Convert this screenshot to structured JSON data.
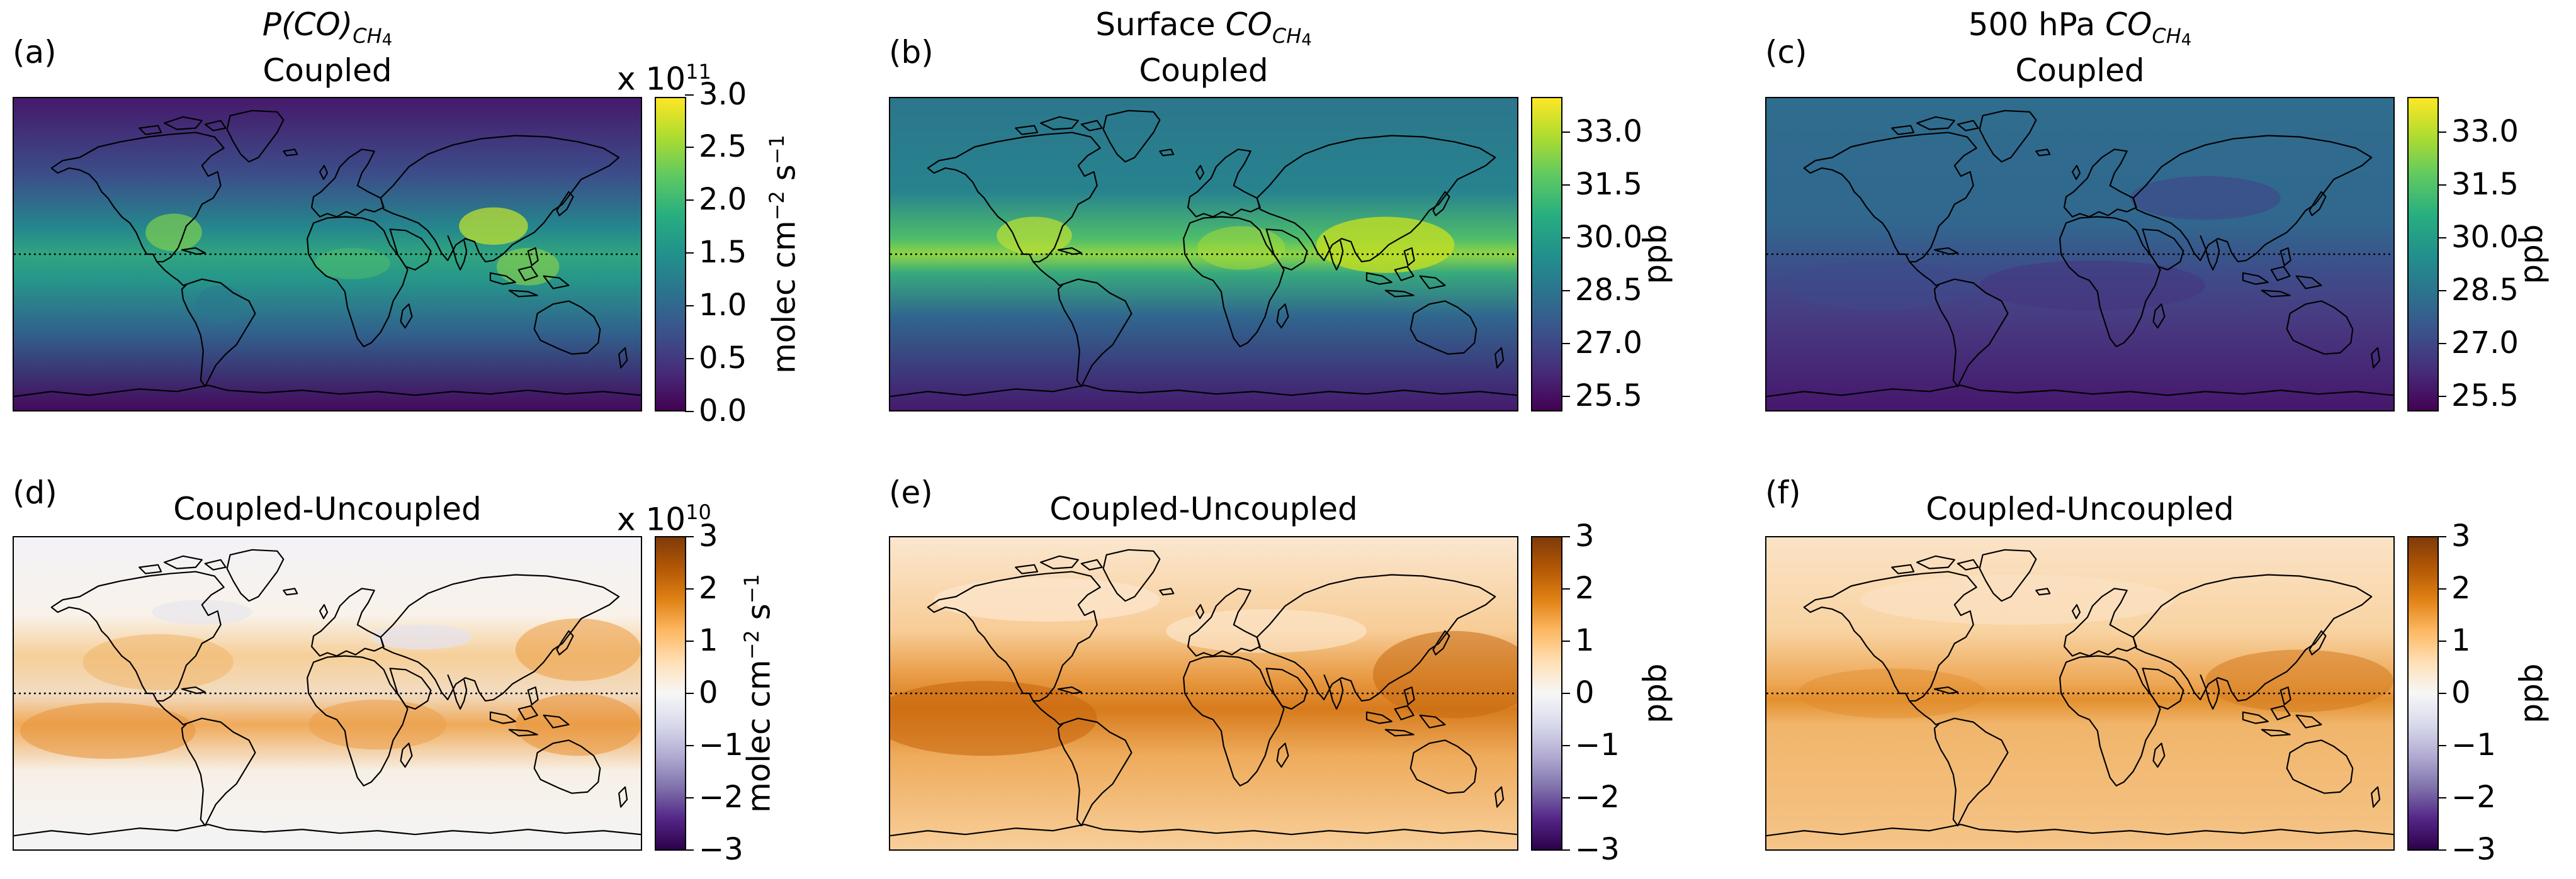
{
  "colors": {
    "viridis": [
      "#440154",
      "#472c7a",
      "#3b528b",
      "#2c728e",
      "#21918c",
      "#28ae80",
      "#5ec962",
      "#addc30",
      "#fde725"
    ],
    "puor": [
      "#2d004b",
      "#542788",
      "#8073ac",
      "#b2abd2",
      "#d8daeb",
      "#f7f7f7",
      "#fee0b6",
      "#fdb863",
      "#e08214",
      "#b35806",
      "#7f3b08"
    ],
    "coastline": "#000000",
    "equator": "#000000"
  },
  "panels": [
    {
      "letter": "(a)",
      "title_line1": {
        "main": "P(CO)",
        "sub": "CH",
        "sub2": "4"
      },
      "title_line2": "Coupled",
      "colorbar": {
        "cmap": "viridis",
        "multiplier_prefix": "x 10",
        "multiplier_exp": "11",
        "label": {
          "pre": "molec cm",
          "exp1": "−2",
          "mid": " s",
          "exp2": "−1"
        },
        "ticks": [
          "0.0",
          "0.5",
          "1.0",
          "1.5",
          "2.0",
          "2.5",
          "3.0"
        ]
      }
    },
    {
      "letter": "(b)",
      "title_line1": {
        "pre": "Surface ",
        "main": "CO",
        "sub": "CH",
        "sub2": "4"
      },
      "title_line2": "Coupled",
      "colorbar": {
        "cmap": "viridis",
        "label_text": "ppb",
        "ticks": [
          "25.5",
          "27.0",
          "28.5",
          "30.0",
          "31.5",
          "33.0"
        ]
      }
    },
    {
      "letter": "(c)",
      "title_line1": {
        "pre": "500 hPa ",
        "main": "CO",
        "sub": "CH",
        "sub2": "4"
      },
      "title_line2": "Coupled",
      "colorbar": {
        "cmap": "viridis",
        "label_text": "ppb",
        "ticks": [
          "25.5",
          "27.0",
          "28.5",
          "30.0",
          "31.5",
          "33.0"
        ]
      }
    },
    {
      "letter": "(d)",
      "title_line2": "Coupled-Uncoupled",
      "colorbar": {
        "cmap": "puor",
        "multiplier_prefix": "x 10",
        "multiplier_exp": "10",
        "label": {
          "pre": "molec cm",
          "exp1": "−2",
          "mid": " s",
          "exp2": "−1"
        },
        "ticks": [
          "−3",
          "−2",
          "−1",
          "0",
          "1",
          "2",
          "3"
        ]
      }
    },
    {
      "letter": "(e)",
      "title_line2": "Coupled-Uncoupled",
      "colorbar": {
        "cmap": "puor",
        "label_text": "ppb",
        "ticks": [
          "−3",
          "−2",
          "−1",
          "0",
          "1",
          "2",
          "3"
        ]
      }
    },
    {
      "letter": "(f)",
      "title_line2": "Coupled-Uncoupled",
      "colorbar": {
        "cmap": "puor",
        "label_text": "ppb",
        "ticks": [
          "−3",
          "−2",
          "−1",
          "0",
          "1",
          "2",
          "3"
        ]
      }
    }
  ]
}
